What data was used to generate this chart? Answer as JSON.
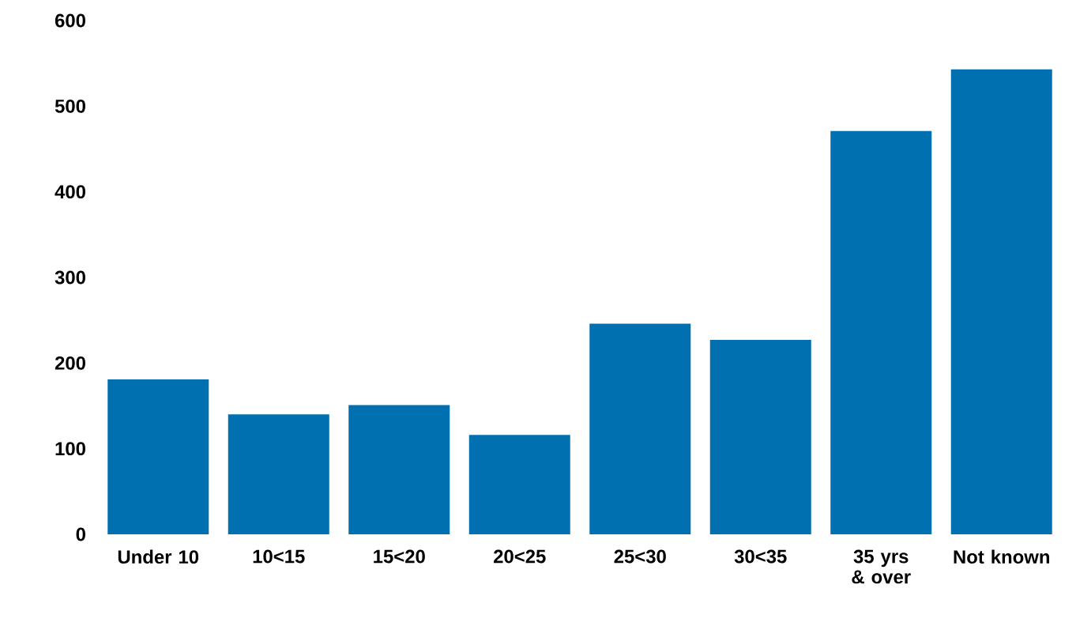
{
  "chart_data": {
    "type": "bar",
    "categories": [
      "Under 10",
      "10<15",
      "15<20",
      "20<25",
      "25<30",
      "30<35",
      "35 yrs & over",
      "Not known"
    ],
    "values": [
      181,
      140,
      151,
      116,
      246,
      227,
      471,
      543
    ],
    "color": "#0070b0",
    "ylim": [
      0,
      600
    ],
    "yticks": [
      0,
      100,
      200,
      300,
      400,
      500,
      600
    ],
    "grid": false
  }
}
